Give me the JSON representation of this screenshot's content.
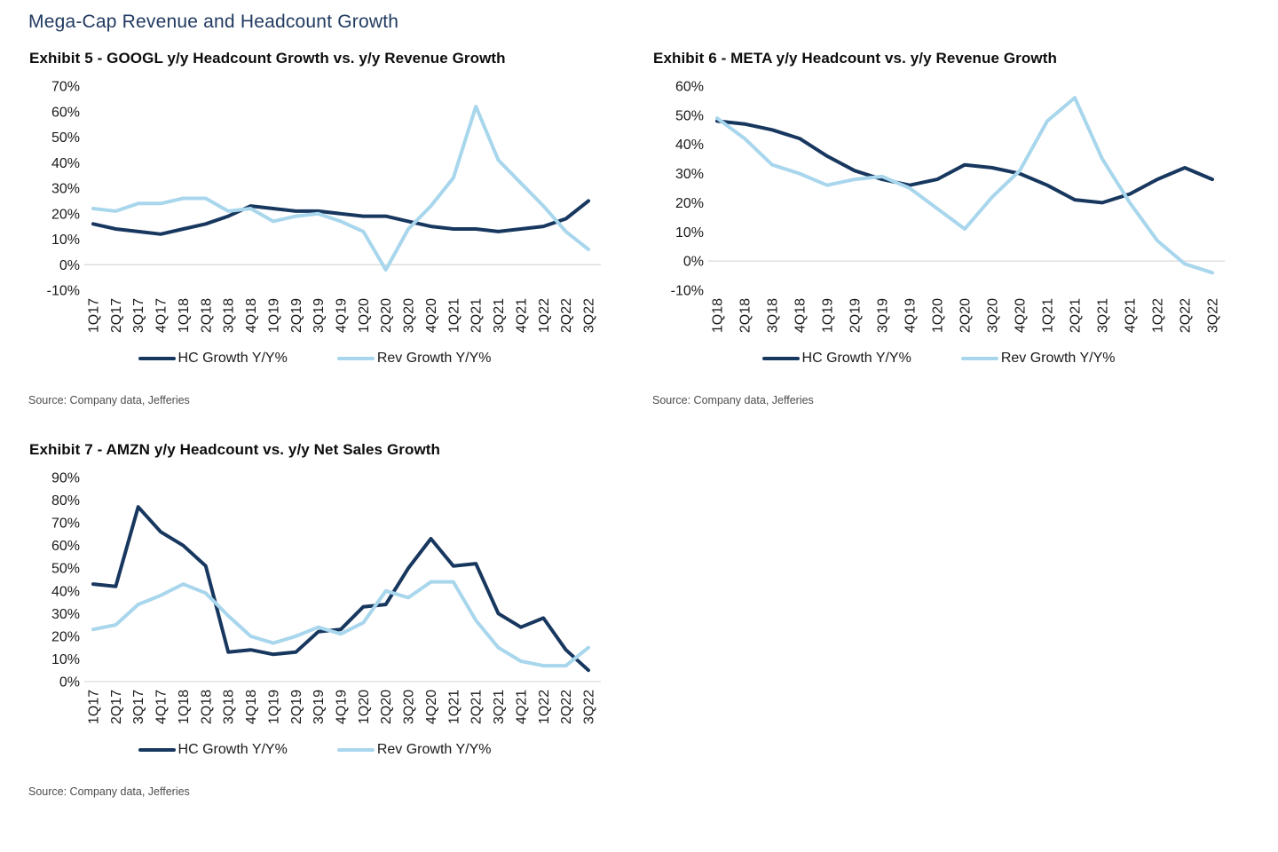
{
  "page": {
    "title": "Mega-Cap Revenue and Headcount Growth"
  },
  "colors": {
    "navy": "#17375f",
    "light_blue": "#a8d6ec",
    "title_blue": "#203a60",
    "gridline": "#d9d9d9"
  },
  "chart_data": [
    {
      "type": "line",
      "title": "Exhibit 5 - GOOGL y/y Headcount Growth vs. y/y Revenue Growth",
      "source": "Source: Company data, Jefferies",
      "categories": [
        "1Q17",
        "2Q17",
        "3Q17",
        "4Q17",
        "1Q18",
        "2Q18",
        "3Q18",
        "4Q18",
        "1Q19",
        "2Q19",
        "3Q19",
        "4Q19",
        "1Q20",
        "2Q20",
        "3Q20",
        "4Q20",
        "1Q21",
        "2Q21",
        "3Q21",
        "4Q21",
        "1Q22",
        "2Q22",
        "3Q22"
      ],
      "series": [
        {
          "name": "HC Growth Y/Y%",
          "color": "#17375f",
          "values": [
            16,
            14,
            13,
            12,
            14,
            16,
            19,
            23,
            22,
            21,
            21,
            20,
            19,
            19,
            17,
            15,
            14,
            14,
            13,
            14,
            15,
            18,
            25
          ]
        },
        {
          "name": "Rev Growth Y/Y%",
          "color": "#a8d6ec",
          "values": [
            22,
            21,
            24,
            24,
            26,
            26,
            21,
            22,
            17,
            19,
            20,
            17,
            13,
            -2,
            14,
            23,
            34,
            62,
            41,
            32,
            23,
            13,
            6
          ]
        }
      ],
      "ylim": [
        -10,
        70
      ],
      "yticks": [
        70,
        60,
        50,
        40,
        30,
        20,
        10,
        0,
        -10
      ],
      "ytick_suffix": "%",
      "grid": "horizontal zero-line only",
      "legend_position": "bottom"
    },
    {
      "type": "line",
      "title": "Exhibit 6 - META y/y Headcount vs. y/y Revenue Growth",
      "source": "Source: Company data, Jefferies",
      "categories": [
        "1Q18",
        "2Q18",
        "3Q18",
        "4Q18",
        "1Q19",
        "2Q19",
        "3Q19",
        "4Q19",
        "1Q20",
        "2Q20",
        "3Q20",
        "4Q20",
        "1Q21",
        "2Q21",
        "3Q21",
        "4Q21",
        "1Q22",
        "2Q22",
        "3Q22"
      ],
      "series": [
        {
          "name": "HC Growth Y/Y%",
          "color": "#17375f",
          "values": [
            48,
            47,
            45,
            42,
            36,
            31,
            28,
            26,
            28,
            33,
            32,
            30,
            26,
            21,
            20,
            23,
            28,
            32,
            28
          ]
        },
        {
          "name": "Rev Growth Y/Y%",
          "color": "#a8d6ec",
          "values": [
            49,
            42,
            33,
            30,
            26,
            28,
            29,
            25,
            18,
            11,
            22,
            31,
            48,
            56,
            35,
            20,
            7,
            -1,
            -4
          ]
        }
      ],
      "ylim": [
        -10,
        60
      ],
      "yticks": [
        60,
        50,
        40,
        30,
        20,
        10,
        0,
        -10
      ],
      "ytick_suffix": "%",
      "grid": "horizontal zero-line only",
      "legend_position": "bottom"
    },
    {
      "type": "line",
      "title": "Exhibit 7 - AMZN y/y Headcount vs. y/y Net Sales Growth",
      "source": "Source: Company data, Jefferies",
      "categories": [
        "1Q17",
        "2Q17",
        "3Q17",
        "4Q17",
        "1Q18",
        "2Q18",
        "3Q18",
        "4Q18",
        "1Q19",
        "2Q19",
        "3Q19",
        "4Q19",
        "1Q20",
        "2Q20",
        "3Q20",
        "4Q20",
        "1Q21",
        "2Q21",
        "3Q21",
        "4Q21",
        "1Q22",
        "2Q22",
        "3Q22"
      ],
      "series": [
        {
          "name": "HC Growth Y/Y%",
          "color": "#17375f",
          "values": [
            43,
            42,
            77,
            66,
            60,
            51,
            13,
            14,
            12,
            13,
            22,
            23,
            33,
            34,
            50,
            63,
            51,
            52,
            30,
            24,
            28,
            14,
            5
          ]
        },
        {
          "name": "Rev Growth Y/Y%",
          "color": "#a8d6ec",
          "values": [
            23,
            25,
            34,
            38,
            43,
            39,
            29,
            20,
            17,
            20,
            24,
            21,
            26,
            40,
            37,
            44,
            44,
            27,
            15,
            9,
            7,
            7,
            15
          ]
        }
      ],
      "ylim": [
        0,
        90
      ],
      "yticks": [
        90,
        80,
        70,
        60,
        50,
        40,
        30,
        20,
        10,
        0
      ],
      "ytick_suffix": "%",
      "grid": "horizontal zero-line only",
      "legend_position": "bottom"
    }
  ]
}
